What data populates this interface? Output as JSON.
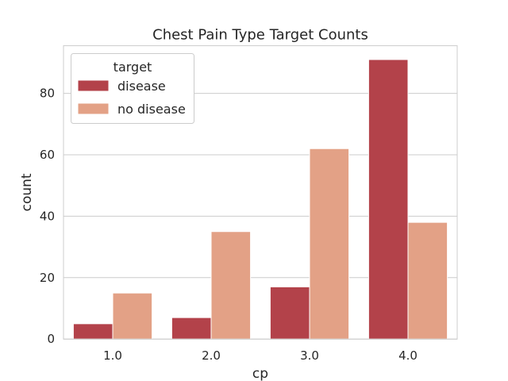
{
  "chart_data": {
    "type": "bar",
    "title": "Chest Pain Type Target Counts",
    "xlabel": "cp",
    "ylabel": "count",
    "categories": [
      "1.0",
      "2.0",
      "3.0",
      "4.0"
    ],
    "series": [
      {
        "name": "disease",
        "values": [
          5,
          7,
          17,
          91
        ],
        "color": "#b3424a"
      },
      {
        "name": "no disease",
        "values": [
          15,
          35,
          62,
          38
        ],
        "color": "#e3a186"
      }
    ],
    "ylim": [
      0,
      95.5
    ],
    "yticks": [
      0,
      20,
      40,
      60,
      80
    ],
    "grid": true,
    "legend": {
      "title": "target",
      "placement": "top-left"
    }
  }
}
